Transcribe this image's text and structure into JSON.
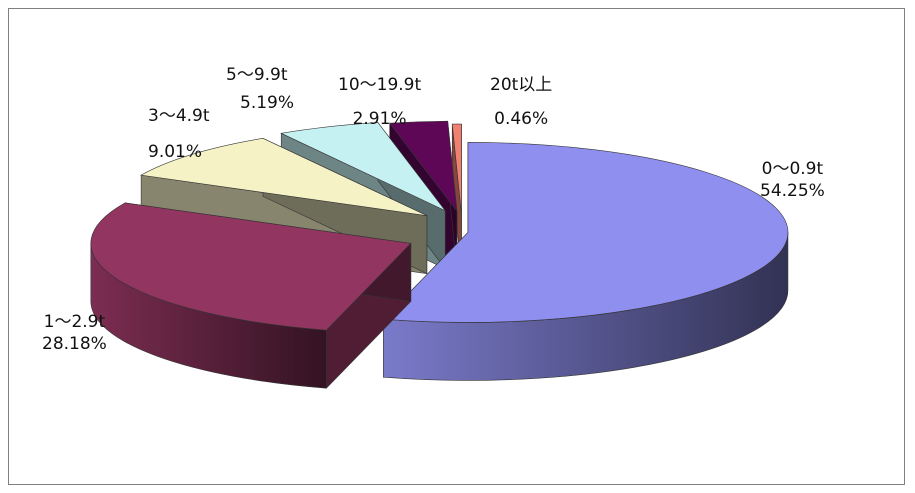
{
  "chart_data": {
    "type": "pie",
    "title": "",
    "style": "3d-exploded",
    "slices": [
      {
        "label": "0～0.9t",
        "percent_text": "54.25%",
        "value": 54.25,
        "color": "#8f8fef"
      },
      {
        "label": "1～2.9t",
        "percent_text": "28.18%",
        "value": 28.18,
        "color": "#923561"
      },
      {
        "label": "3～4.9t",
        "percent_text": "9.01%",
        "value": 9.01,
        "color": "#f5f2c6"
      },
      {
        "label": "5～9.9t",
        "percent_text": "5.19%",
        "value": 5.19,
        "color": "#c6f1f2"
      },
      {
        "label": "10～19.9t",
        "percent_text": "2.91%",
        "value": 2.91,
        "color": "#5e0757"
      },
      {
        "label": "20t以上",
        "percent_text": "0.46%",
        "value": 0.46,
        "color": "#f08070"
      }
    ]
  }
}
